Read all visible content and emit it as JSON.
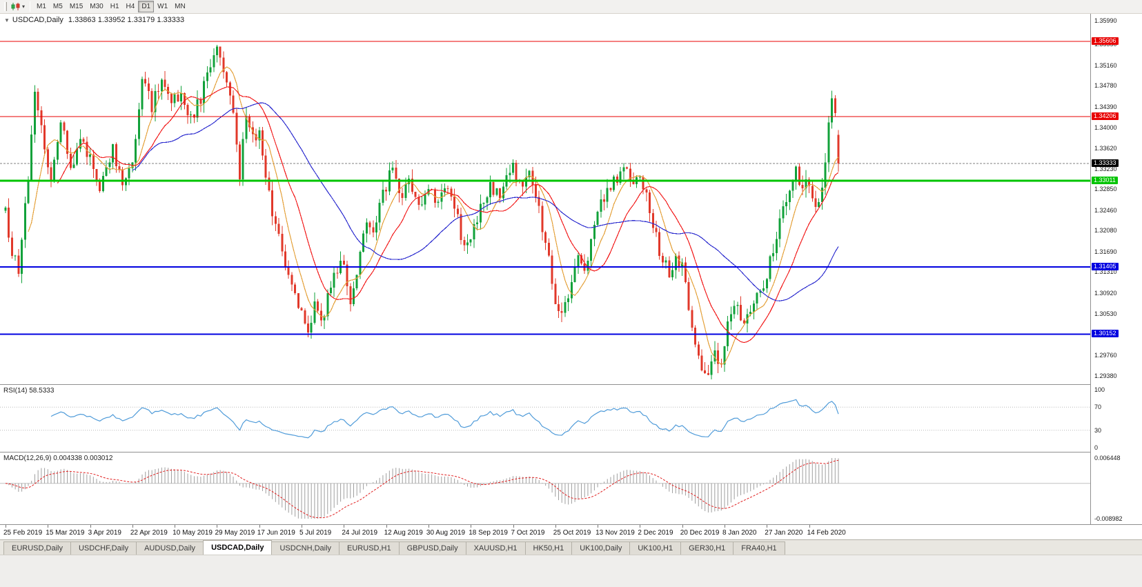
{
  "toolbar": {
    "timeframes": [
      {
        "label": "M1",
        "active": false
      },
      {
        "label": "M5",
        "active": false
      },
      {
        "label": "M15",
        "active": false
      },
      {
        "label": "M30",
        "active": false
      },
      {
        "label": "H1",
        "active": false
      },
      {
        "label": "H4",
        "active": false
      },
      {
        "label": "D1",
        "active": true
      },
      {
        "label": "W1",
        "active": false
      },
      {
        "label": "MN",
        "active": false
      }
    ]
  },
  "chart": {
    "symbol": "USDCAD,Daily",
    "ohlc_text": "1.33863 1.33952 1.33179 1.33333",
    "current_ohlc": {
      "open": "1.33863",
      "high": "1.33952",
      "low": "1.33179",
      "close": "1.33333"
    },
    "current_price_label": "1.33333",
    "price_min": 1.2922,
    "price_max": 1.3612,
    "candle_count": 257,
    "seed": 987654321,
    "label_interval": 13,
    "colors": {
      "up": "#11a13a",
      "down": "#e1382a",
      "current_line": "#808080",
      "current_box": "#000000",
      "axis_text": "#1a1a1a"
    },
    "moving_averages": [
      {
        "period": 8,
        "color": "#e4a23c"
      },
      {
        "period": 17,
        "color": "#f21d1d"
      },
      {
        "period": 40,
        "color": "#2d2dcf"
      }
    ],
    "levels": [
      {
        "price": 1.35606,
        "label": "1.35606",
        "color": "#e80000",
        "width": 1
      },
      {
        "price": 1.34206,
        "label": "1.34206",
        "color": "#e80000",
        "width": 1
      },
      {
        "price": 1.33011,
        "label": "1.33011",
        "color": "#00c400",
        "width": 3
      },
      {
        "price": 1.31405,
        "label": "1.31405",
        "color": "#0000e0",
        "width": 2
      },
      {
        "price": 1.30152,
        "label": "1.30152",
        "color": "#0000e0",
        "width": 2
      }
    ],
    "y_ticks": [
      "1.35990",
      "1.35550",
      "1.35160",
      "1.34780",
      "1.34390",
      "1.34000",
      "1.33620",
      "1.33230",
      "1.32850",
      "1.32460",
      "1.32080",
      "1.31690",
      "1.31310",
      "1.30920",
      "1.30530",
      "1.29760",
      "1.29380"
    ],
    "x_labels": [
      "25 Feb 2019",
      "15 Mar 2019",
      "3 Apr 2019",
      "22 Apr 2019",
      "10 May 2019",
      "29 May 2019",
      "17 Jun 2019",
      "5 Jul 2019",
      "24 Jul 2019",
      "12 Aug 2019",
      "30 Aug 2019",
      "18 Sep 2019",
      "7 Oct 2019",
      "25 Oct 2019",
      "13 Nov 2019",
      "2 Dec 2019",
      "20 Dec 2019",
      "8 Jan 2020",
      "27 Jan 2020",
      "14 Feb 2020"
    ],
    "price_keyframes": [
      [
        0,
        1.3245
      ],
      [
        2,
        1.3165
      ],
      [
        4,
        1.3135
      ],
      [
        7,
        1.331
      ],
      [
        9,
        1.3465
      ],
      [
        12,
        1.337
      ],
      [
        14,
        1.3305
      ],
      [
        17,
        1.342
      ],
      [
        20,
        1.332
      ],
      [
        23,
        1.338
      ],
      [
        26,
        1.3345
      ],
      [
        29,
        1.329
      ],
      [
        33,
        1.336
      ],
      [
        36,
        1.33
      ],
      [
        39,
        1.334
      ],
      [
        42,
        1.349
      ],
      [
        45,
        1.344
      ],
      [
        48,
        1.3495
      ],
      [
        51,
        1.344
      ],
      [
        54,
        1.347
      ],
      [
        57,
        1.3415
      ],
      [
        60,
        1.3455
      ],
      [
        63,
        1.3515
      ],
      [
        65,
        1.3555
      ],
      [
        67,
        1.35
      ],
      [
        70,
        1.343
      ],
      [
        72,
        1.331
      ],
      [
        74,
        1.3425
      ],
      [
        76,
        1.338
      ],
      [
        78,
        1.339
      ],
      [
        80,
        1.33
      ],
      [
        83,
        1.322
      ],
      [
        86,
        1.315
      ],
      [
        89,
        1.308
      ],
      [
        91,
        1.305
      ],
      [
        93,
        1.3015
      ],
      [
        95,
        1.307
      ],
      [
        97,
        1.303
      ],
      [
        100,
        1.3105
      ],
      [
        102,
        1.3135
      ],
      [
        104,
        1.3145
      ],
      [
        106,
        1.307
      ],
      [
        108,
        1.312
      ],
      [
        111,
        1.323
      ],
      [
        113,
        1.32
      ],
      [
        115,
        1.326
      ],
      [
        117,
        1.329
      ],
      [
        119,
        1.333
      ],
      [
        121,
        1.327
      ],
      [
        124,
        1.33
      ],
      [
        127,
        1.325
      ],
      [
        130,
        1.3295
      ],
      [
        133,
        1.326
      ],
      [
        136,
        1.329
      ],
      [
        139,
        1.323
      ],
      [
        141,
        1.317
      ],
      [
        143,
        1.32
      ],
      [
        146,
        1.325
      ],
      [
        149,
        1.329
      ],
      [
        152,
        1.327
      ],
      [
        154,
        1.3305
      ],
      [
        156,
        1.333
      ],
      [
        158,
        1.329
      ],
      [
        161,
        1.331
      ],
      [
        164,
        1.325
      ],
      [
        167,
        1.315
      ],
      [
        169,
        1.308
      ],
      [
        171,
        1.3055
      ],
      [
        174,
        1.311
      ],
      [
        176,
        1.317
      ],
      [
        178,
        1.313
      ],
      [
        181,
        1.323
      ],
      [
        184,
        1.327
      ],
      [
        187,
        1.33
      ],
      [
        190,
        1.332
      ],
      [
        193,
        1.33
      ],
      [
        195,
        1.332
      ],
      [
        198,
        1.325
      ],
      [
        201,
        1.317
      ],
      [
        204,
        1.313
      ],
      [
        206,
        1.315
      ],
      [
        208,
        1.315
      ],
      [
        210,
        1.306
      ],
      [
        212,
        1.2995
      ],
      [
        214,
        1.2955
      ],
      [
        216,
        1.2945
      ],
      [
        218,
        1.298
      ],
      [
        220,
        1.295
      ],
      [
        222,
        1.3035
      ],
      [
        224,
        1.307
      ],
      [
        227,
        1.304
      ],
      [
        229,
        1.306
      ],
      [
        232,
        1.309
      ],
      [
        235,
        1.315
      ],
      [
        238,
        1.323
      ],
      [
        241,
        1.328
      ],
      [
        243,
        1.332
      ],
      [
        245,
        1.329
      ],
      [
        247,
        1.33
      ],
      [
        249,
        1.3255
      ],
      [
        251,
        1.3285
      ],
      [
        253,
        1.3405
      ],
      [
        254,
        1.346
      ],
      [
        255,
        1.343
      ],
      [
        256,
        1.3333
      ]
    ]
  },
  "rsi": {
    "label": "RSI(14) 58.5333",
    "period": 14,
    "line_color": "#4f9bd9",
    "ticks": [
      {
        "value": 100,
        "label": "100"
      },
      {
        "value": 70,
        "label": "70"
      },
      {
        "value": 30,
        "label": "30"
      },
      {
        "value": 0,
        "label": "0"
      }
    ],
    "guide_levels": [
      70,
      30
    ]
  },
  "macd": {
    "label": "MACD(12,26,9) 0.004338 0.003012",
    "fast": 12,
    "slow": 26,
    "signal": 9,
    "max": 0.006448,
    "min": -0.008982,
    "ticks": [
      {
        "value": 0.006448,
        "label": "0.006448"
      },
      {
        "value": -0.008982,
        "label": "-0.008982"
      }
    ],
    "hist_color": "#9e9e9e",
    "signal_color": "#e01d1d"
  },
  "tabs": [
    {
      "label": "EURUSD,Daily",
      "active": false
    },
    {
      "label": "USDCHF,Daily",
      "active": false
    },
    {
      "label": "AUDUSD,Daily",
      "active": false
    },
    {
      "label": "USDCAD,Daily",
      "active": true
    },
    {
      "label": "USDCNH,Daily",
      "active": false
    },
    {
      "label": "EURUSD,H1",
      "active": false
    },
    {
      "label": "GBPUSD,Daily",
      "active": false
    },
    {
      "label": "XAUUSD,H1",
      "active": false
    },
    {
      "label": "HK50,H1",
      "active": false
    },
    {
      "label": "UK100,Daily",
      "active": false
    },
    {
      "label": "UK100,H1",
      "active": false
    },
    {
      "label": "GER30,H1",
      "active": false
    },
    {
      "label": "FRA40,H1",
      "active": false
    }
  ]
}
